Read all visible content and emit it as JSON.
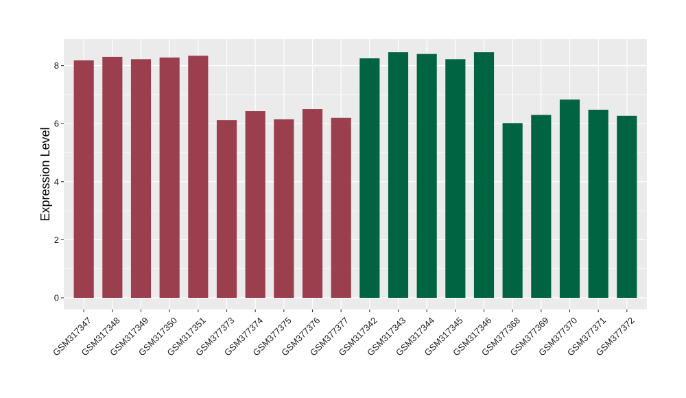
{
  "chart_data": {
    "type": "bar",
    "title": "",
    "xlabel": "",
    "ylabel": "Expression Level",
    "ylim": [
      0,
      8.85
    ],
    "yticks": [
      0,
      2,
      4,
      6,
      8
    ],
    "grid": true,
    "legend": "none",
    "categories": [
      "GSM317347",
      "GSM317348",
      "GSM317349",
      "GSM317350",
      "GSM317351",
      "GSM377373",
      "GSM377374",
      "GSM377375",
      "GSM377376",
      "GSM377377",
      "GSM317342",
      "GSM317343",
      "GSM317344",
      "GSM317345",
      "GSM317346",
      "GSM377368",
      "GSM377369",
      "GSM377370",
      "GSM377371",
      "GSM377372"
    ],
    "values": [
      8.18,
      8.3,
      8.22,
      8.28,
      8.34,
      6.12,
      6.43,
      6.15,
      6.5,
      6.2,
      8.25,
      8.46,
      8.4,
      8.22,
      8.46,
      6.02,
      6.3,
      6.83,
      6.48,
      6.27
    ],
    "bar_colors": [
      "#9b3f4f",
      "#9b3f4f",
      "#9b3f4f",
      "#9b3f4f",
      "#9b3f4f",
      "#9b3f4f",
      "#9b3f4f",
      "#9b3f4f",
      "#9b3f4f",
      "#9b3f4f",
      "#006442",
      "#006442",
      "#006442",
      "#006442",
      "#006442",
      "#006442",
      "#006442",
      "#006442",
      "#006442",
      "#006442"
    ],
    "panel_background": "#ebebeb",
    "grid_color": "#ffffff"
  }
}
